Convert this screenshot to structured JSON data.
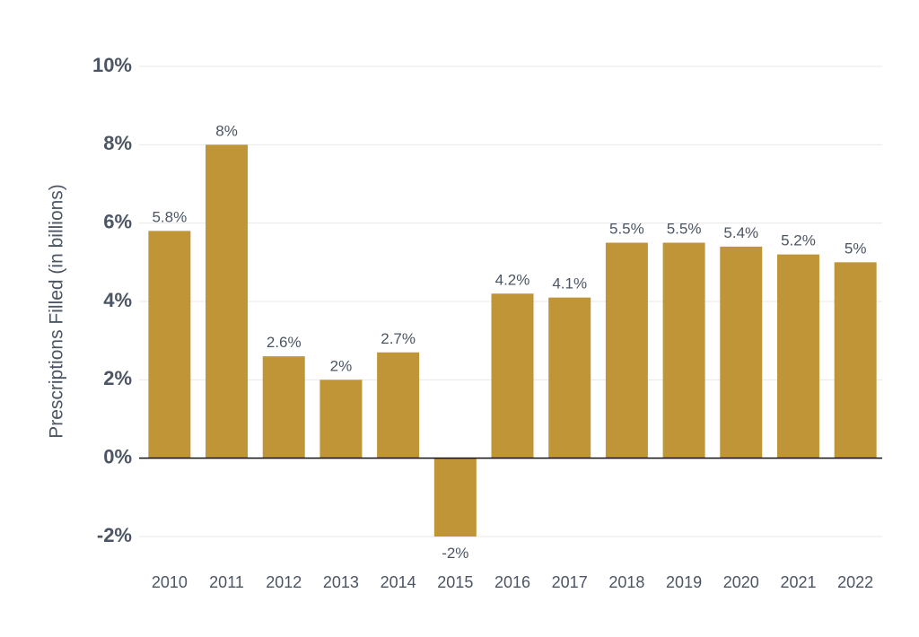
{
  "chart_data": {
    "type": "bar",
    "title": "",
    "xlabel": "",
    "ylabel": "Prescriptions Filled (in billions)",
    "categories": [
      "2010",
      "2011",
      "2012",
      "2013",
      "2014",
      "2015",
      "2016",
      "2017",
      "2018",
      "2019",
      "2020",
      "2021",
      "2022"
    ],
    "values": [
      5.8,
      8,
      2.6,
      2,
      2.7,
      -2,
      4.2,
      4.1,
      5.5,
      5.5,
      5.4,
      5.2,
      5
    ],
    "data_labels": [
      "5.8%",
      "8%",
      "2.6%",
      "2%",
      "2.7%",
      "-2%",
      "4.2%",
      "4.1%",
      "5.5%",
      "5.5%",
      "5.4%",
      "5.2%",
      "5%"
    ],
    "yticks": [
      10,
      8,
      6,
      4,
      2,
      0,
      -2
    ],
    "ytick_labels": [
      "10%",
      "8%",
      "6%",
      "4%",
      "2%",
      "0%",
      "-2%"
    ],
    "ylim": [
      -2,
      10
    ],
    "grid": true,
    "legend": "none",
    "colors": {
      "bar": "#c09538",
      "text": "#4b5563",
      "grid": "#e8e8e8",
      "zero_line": "#111111"
    }
  }
}
